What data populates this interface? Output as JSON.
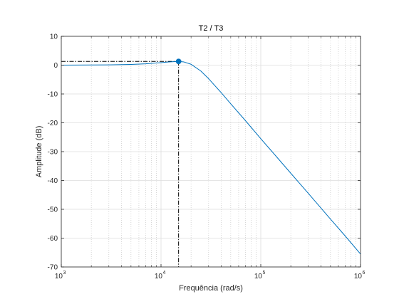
{
  "chart_data": {
    "type": "line",
    "title": "T2 / T3",
    "xlabel": "Frequência  (rad/s)",
    "ylabel": "Amplitude (dB)",
    "x_scale": "log",
    "xlim": [
      1000,
      1000000
    ],
    "ylim": [
      -70,
      10
    ],
    "x_ticks": [
      1000,
      10000,
      100000,
      1000000
    ],
    "x_tick_labels": [
      {
        "base": "10",
        "exp": "3"
      },
      {
        "base": "10",
        "exp": "4"
      },
      {
        "base": "10",
        "exp": "5"
      },
      {
        "base": "10",
        "exp": "6"
      }
    ],
    "y_ticks": [
      10,
      0,
      -10,
      -20,
      -30,
      -40,
      -50,
      -60,
      -70
    ],
    "y_tick_labels": [
      "10",
      "0",
      "-10",
      "-20",
      "-30",
      "-40",
      "-50",
      "-60",
      "-70"
    ],
    "grid": true,
    "minor_grid_x": true,
    "series": [
      {
        "color": "#0072BD",
        "x": [
          1000,
          2000,
          3000,
          5000,
          7000,
          10000,
          12000,
          15000,
          17000,
          20000,
          25000,
          30000,
          40000,
          50000,
          70000,
          100000,
          150000,
          200000,
          300000,
          500000,
          700000,
          1000000
        ],
        "y": [
          0.0,
          0.05,
          0.1,
          0.25,
          0.45,
          0.85,
          1.1,
          1.3,
          1.1,
          0.3,
          -2.0,
          -4.7,
          -9.5,
          -13.4,
          -19.2,
          -25.5,
          -32.5,
          -37.5,
          -44.5,
          -53.4,
          -59.2,
          -65.5
        ]
      }
    ],
    "annotations": [
      {
        "type": "peak-marker",
        "x": 15000,
        "y": 1.3,
        "color": "#0072BD"
      },
      {
        "type": "dash-dot-guide",
        "x": 15000,
        "y": 1.3,
        "color": "#000000"
      }
    ]
  }
}
